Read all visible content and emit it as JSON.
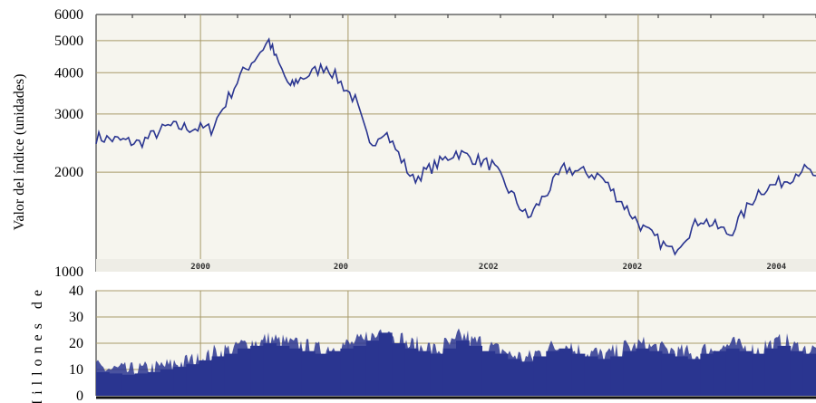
{
  "chart_data": [
    {
      "type": "line",
      "ylabel": "Valor del índice (unidades)",
      "yscale": "log",
      "ylim": [
        1000,
        6000
      ],
      "yticks": [
        1000,
        2000,
        3000,
        4000,
        5000,
        6000
      ],
      "x_tick_labels": [
        "2000",
        "200",
        "2CO2",
        "2002",
        "2004"
      ],
      "grid": true,
      "series": [
        {
          "color": "#2a3590",
          "x": [
            0,
            0.06,
            0.1,
            0.16,
            0.2,
            0.24,
            0.25,
            0.27,
            0.28,
            0.32,
            0.36,
            0.38,
            0.4,
            0.44,
            0.5,
            0.55,
            0.6,
            0.65,
            0.7,
            0.76,
            0.8,
            0.84,
            0.88,
            0.92,
            0.96,
            0.98,
            1.0
          ],
          "values": [
            2550,
            2450,
            2750,
            2700,
            3900,
            5000,
            4400,
            3600,
            3800,
            4200,
            3300,
            2400,
            2700,
            1900,
            2300,
            2100,
            1450,
            2050,
            1950,
            1350,
            1150,
            1450,
            1300,
            1750,
            1900,
            2050,
            1950
          ]
        }
      ]
    },
    {
      "type": "bar",
      "ylabel": "Millones de",
      "ylim": [
        0,
        40
      ],
      "yticks": [
        0,
        10,
        20,
        30,
        40
      ],
      "grid": true,
      "series": [
        {
          "color": "#2a3590",
          "values": [
            9,
            8.5,
            8,
            8.5,
            9,
            10,
            11,
            12,
            13.5,
            15,
            16,
            18,
            19,
            20,
            19,
            18,
            17,
            16,
            17,
            18,
            19,
            21,
            24,
            20,
            18,
            17,
            16,
            18,
            21,
            19,
            17,
            16,
            14,
            13,
            15,
            17,
            18,
            16,
            15,
            14,
            15,
            17,
            18,
            17,
            16,
            15,
            14,
            16,
            17,
            18,
            17,
            16,
            18,
            19,
            17,
            16
          ]
        }
      ]
    }
  ]
}
